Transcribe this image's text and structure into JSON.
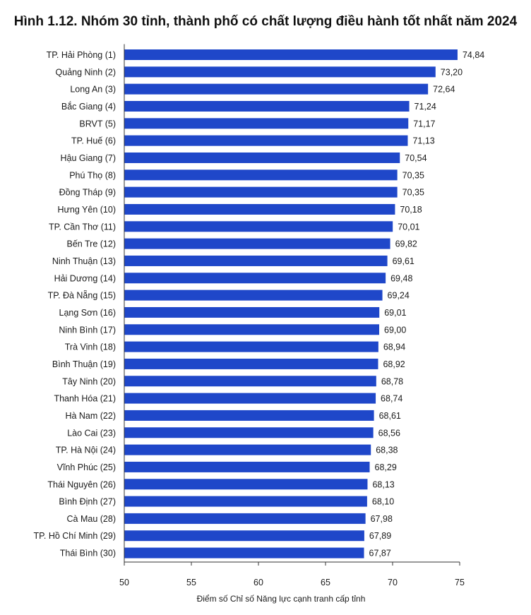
{
  "chart_data": {
    "type": "bar",
    "orientation": "horizontal",
    "title": "Hình 1.12. Nhóm 30 tỉnh, thành phố có chất lượng điều hành tốt nhất năm 2024",
    "xlabel": "Điểm số Chỉ số Năng lực cạnh tranh cấp tỉnh",
    "ylabel": "",
    "xlim": [
      50,
      75
    ],
    "xticks": [
      50,
      55,
      60,
      65,
      70,
      75
    ],
    "bar_color": "#1f47c9",
    "grid": false,
    "categories": [
      "TP. Hải Phòng (1)",
      "Quảng Ninh (2)",
      "Long An (3)",
      "Bắc Giang (4)",
      "BRVT (5)",
      "TP. Huế (6)",
      "Hậu Giang (7)",
      "Phú Thọ (8)",
      "Đồng Tháp (9)",
      "Hưng Yên (10)",
      "TP. Cần Thơ (11)",
      "Bến Tre (12)",
      "Ninh Thuận (13)",
      "Hải Dương (14)",
      "TP. Đà Nẵng (15)",
      "Lạng Sơn (16)",
      "Ninh Bình (17)",
      "Trà Vinh (18)",
      "Bình Thuận (19)",
      "Tây Ninh (20)",
      "Thanh Hóa (21)",
      "Hà Nam (22)",
      "Lào Cai (23)",
      "TP. Hà Nội (24)",
      "Vĩnh Phúc (25)",
      "Thái Nguyên (26)",
      "Bình Định (27)",
      "Cà Mau (28)",
      "TP. Hồ Chí Minh (29)",
      "Thái Bình (30)"
    ],
    "values": [
      74.84,
      73.2,
      72.64,
      71.24,
      71.17,
      71.13,
      70.54,
      70.35,
      70.35,
      70.18,
      70.01,
      69.82,
      69.61,
      69.48,
      69.24,
      69.01,
      69.0,
      68.94,
      68.92,
      68.78,
      68.74,
      68.61,
      68.56,
      68.38,
      68.29,
      68.13,
      68.1,
      67.98,
      67.89,
      67.87
    ],
    "value_labels": [
      "74,84",
      "73,20",
      "72,64",
      "71,24",
      "71,17",
      "71,13",
      "70,54",
      "70,35",
      "70,35",
      "70,18",
      "70,01",
      "69,82",
      "69,61",
      "69,48",
      "69,24",
      "69,01",
      "69,00",
      "68,94",
      "68,92",
      "68,78",
      "68,74",
      "68,61",
      "68,56",
      "68,38",
      "68,29",
      "68,13",
      "68,10",
      "67,98",
      "67,89",
      "67,87"
    ]
  }
}
